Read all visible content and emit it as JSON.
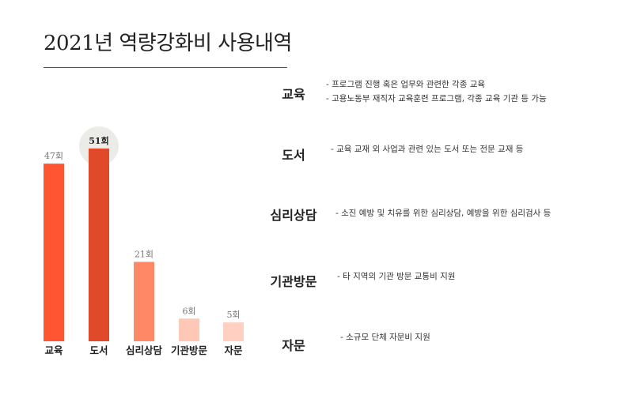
{
  "title": "2021년 역량강화비 사용내역",
  "chart_data": {
    "type": "bar",
    "categories": [
      "교육",
      "도서",
      "심리상담",
      "기관방문",
      "자문"
    ],
    "values": [
      47,
      51,
      21,
      6,
      5
    ],
    "value_labels": [
      "47회",
      "51회",
      "21회",
      "6회",
      "5회"
    ],
    "highlight": "도서",
    "title": "2021년 역량강화비 사용내역",
    "xlabel": "",
    "ylabel": "",
    "ylim": [
      0,
      60
    ],
    "grid": false,
    "colors": [
      "#ff5533",
      "#e04a2a",
      "#ff8866",
      "#ffc7b6",
      "#ffd0c2"
    ],
    "highlight_circle_color": "#ebebe8"
  },
  "legend": [
    {
      "category": "교육",
      "descriptions": [
        "- 프로그램 진행 혹은 업무와 관련한 각종 교육",
        "- 고용노동부 재직자 교육훈련 프로그램, 각종 교육 기관 등 가능"
      ]
    },
    {
      "category": "도서",
      "descriptions": [
        "- 교육 교재 외 사업과 관련 있는 도서 또는 전문 교재 등"
      ]
    },
    {
      "category": "심리상담",
      "descriptions": [
        "- 소진 예방 및 치유를 위한 심리상담, 예방을 위한 심리검사 등"
      ]
    },
    {
      "category": "기관방문",
      "descriptions": [
        "- 타 지역의 기관 방문 교통비 지원"
      ]
    },
    {
      "category": "자문",
      "descriptions": [
        "- 소규모 단체 자문비 지원"
      ]
    }
  ]
}
